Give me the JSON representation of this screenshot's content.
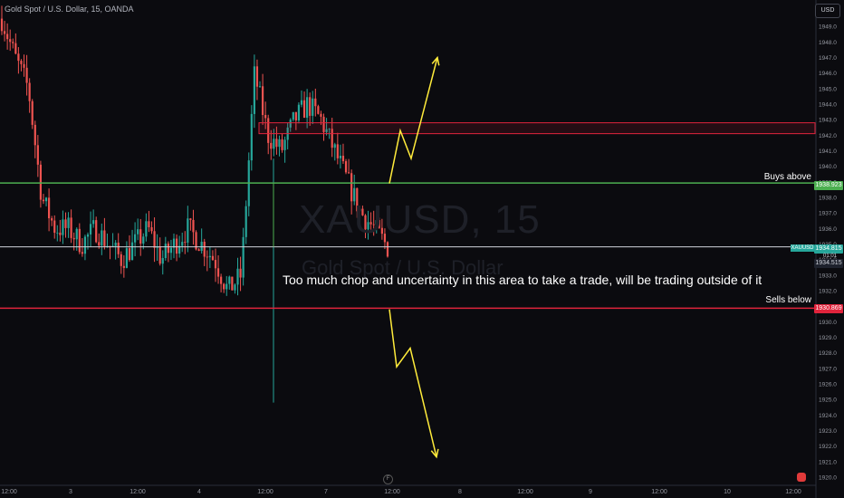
{
  "header": {
    "title": "Gold Spot / U.S. Dollar, 15, OANDA"
  },
  "currency": "USD",
  "watermark": {
    "symbol": "XAUUSD, 15",
    "name": "Gold Spot / U.S. Dollar"
  },
  "annotation": "Too much chop and uncertainty in this area to take a trade, will be trading outside of it",
  "levels": {
    "buys_label": "Buys above",
    "buys_price": "1938.923",
    "sells_label": "Sells below",
    "sells_price": "1930.869",
    "current_price": "1934.815",
    "current_symbol": "XAUUSD",
    "timer": "01:01",
    "bid_price": "1934.515"
  },
  "colors": {
    "up": "#26a69a",
    "down": "#ef5350",
    "buys_line": "#4caf50",
    "sells_line": "#e0243c",
    "arrow": "#ffeb3b"
  },
  "chart_data": {
    "type": "candlestick",
    "title": "Gold Spot / U.S. Dollar, 15, OANDA",
    "ylim": [
      1919.5,
      1950.5
    ],
    "y_ticks": [
      1950,
      1949,
      1948,
      1947,
      1946,
      1945,
      1944,
      1943,
      1942,
      1941,
      1940,
      1939,
      1938,
      1937,
      1936,
      1935,
      1934,
      1933,
      1932,
      1931,
      1930,
      1929,
      1928,
      1927,
      1926,
      1925,
      1924,
      1923,
      1922,
      1921,
      1920
    ],
    "x_ticks": [
      "12:00",
      "3",
      "12:00",
      "4",
      "12:00",
      "7",
      "12:00",
      "8",
      "12:00",
      "9",
      "12:00",
      "10",
      "12:00"
    ],
    "horizontal_lines": [
      {
        "label": "Buys above",
        "value": 1938.923
      },
      {
        "label": "Sells below",
        "value": 1930.869
      },
      {
        "value": 1934.815
      }
    ],
    "resistance_zone": [
      1942.1,
      1942.8
    ],
    "approx_close_path": [
      1949.5,
      1947,
      1945,
      1938,
      1936,
      1936,
      1935,
      1936,
      1935,
      1934,
      1935,
      1936,
      1934,
      1935,
      1936,
      1935,
      1934,
      1932,
      1933,
      1946,
      1942,
      1941,
      1943,
      1944,
      1943,
      1941,
      1939,
      1937,
      1936,
      1934.8
    ],
    "projections": [
      {
        "direction": "up",
        "path": [
          1938.9,
          1942.3,
          1940.5,
          1947.0
        ]
      },
      {
        "direction": "down",
        "path": [
          1930.8,
          1927.1,
          1928.3,
          1921.3
        ]
      }
    ]
  }
}
